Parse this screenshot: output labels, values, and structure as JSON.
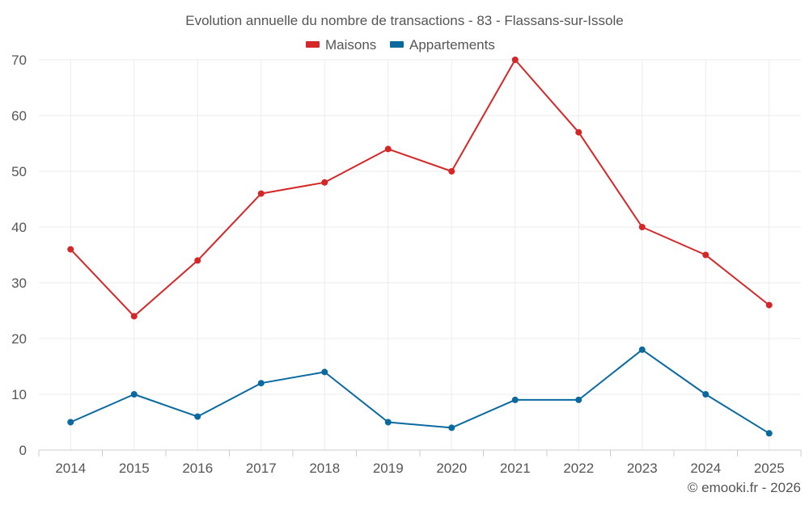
{
  "chart_data": {
    "type": "line",
    "title": "Evolution annuelle du nombre de transactions - 83 - Flassans-sur-Issole",
    "categories": [
      "2014",
      "2015",
      "2016",
      "2017",
      "2018",
      "2019",
      "2020",
      "2021",
      "2022",
      "2023",
      "2024",
      "2025"
    ],
    "series": [
      {
        "name": "Maisons",
        "color": "#d62728",
        "values": [
          36,
          24,
          34,
          46,
          48,
          54,
          50,
          70,
          57,
          40,
          35,
          26
        ]
      },
      {
        "name": "Appartements",
        "color": "#0a6aa0",
        "values": [
          5,
          10,
          6,
          12,
          14,
          5,
          4,
          9,
          9,
          18,
          10,
          3
        ]
      }
    ],
    "ylim": [
      0,
      70
    ],
    "yticks": [
      0,
      10,
      20,
      30,
      40,
      50,
      60,
      70
    ],
    "grid": true,
    "legend_position": "top-center",
    "xlabel": "",
    "ylabel": ""
  },
  "credit": "© emooki.fr - 2026"
}
